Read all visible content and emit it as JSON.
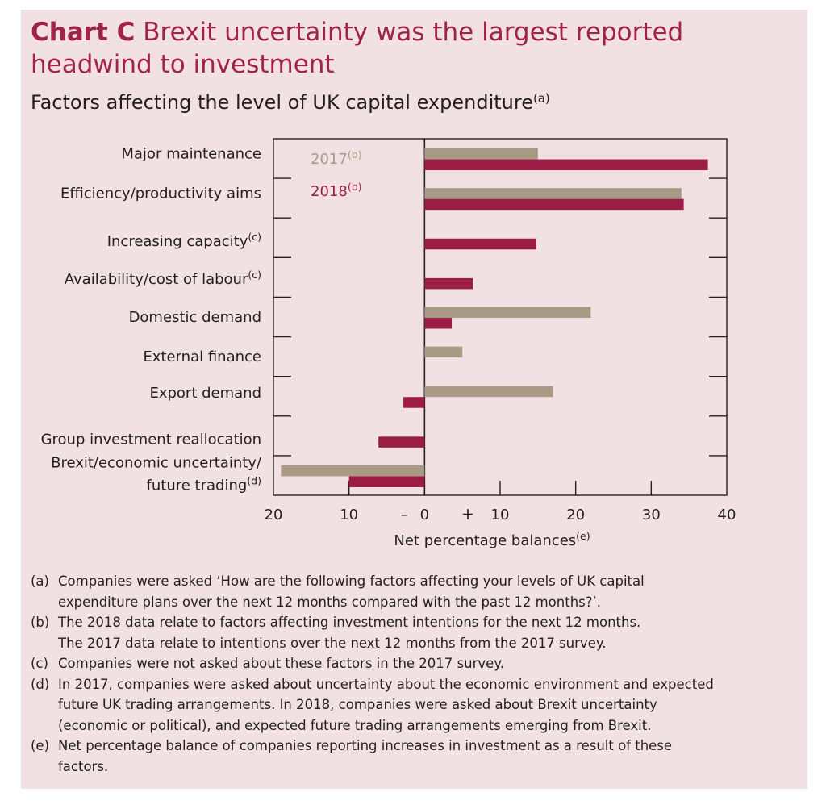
{
  "title": {
    "prefix": "Chart C",
    "text": "Brexit uncertainty was the largest reported headwind to investment"
  },
  "subtitle": {
    "text": "Factors affecting the level of UK capital expenditure",
    "note": "(a)"
  },
  "colors": {
    "s2017": "#a89a85",
    "s2018": "#9b1c44",
    "title": "#a1224a",
    "panel": "#f2e1e3"
  },
  "chart_data": {
    "type": "bar",
    "orientation": "horizontal",
    "categories": [
      {
        "lines": [
          "Major maintenance"
        ],
        "note": ""
      },
      {
        "lines": [
          "Efficiency/productivity aims"
        ],
        "note": ""
      },
      {
        "lines": [
          "Increasing capacity"
        ],
        "note": "(c)"
      },
      {
        "lines": [
          "Availability/cost of labour"
        ],
        "note": "(c)"
      },
      {
        "lines": [
          "Domestic demand"
        ],
        "note": ""
      },
      {
        "lines": [
          "External finance"
        ],
        "note": ""
      },
      {
        "lines": [
          "Export demand"
        ],
        "note": ""
      },
      {
        "lines": [
          "Group investment reallocation"
        ],
        "note": ""
      },
      {
        "lines": [
          "Brexit/economic uncertainty/",
          "future trading"
        ],
        "note": "(d)"
      }
    ],
    "series": [
      {
        "name": "2017",
        "note": "(b)",
        "values": [
          15,
          34,
          null,
          null,
          22,
          5,
          17,
          null,
          -19
        ]
      },
      {
        "name": "2018",
        "note": "(b)",
        "values": [
          37.5,
          34.3,
          14.8,
          6.4,
          3.6,
          null,
          -2.8,
          -6.1,
          -10
        ]
      }
    ],
    "xlim": [
      -20,
      40
    ],
    "xticks": [
      -20,
      -10,
      0,
      10,
      20,
      30,
      40
    ],
    "xtick_labels": [
      "20",
      "10",
      "0",
      "10",
      "20",
      "30",
      "40"
    ],
    "sign_labels": {
      "minus": "–",
      "plus": "+"
    },
    "xlabel": "Net percentage balances",
    "xlabel_note": "(e)",
    "legend_position": "top-left"
  },
  "notes": [
    {
      "marker": "(a)",
      "lines": [
        "Companies were asked ‘How are the following factors affecting your levels of UK capital",
        "expenditure plans over the next 12 months compared with the past 12 months?’."
      ]
    },
    {
      "marker": "(b)",
      "lines": [
        "The 2018 data relate to factors affecting investment intentions for the next 12 months.",
        "The 2017 data relate to intentions over the next 12 months from the 2017 survey."
      ]
    },
    {
      "marker": "(c)",
      "lines": [
        "Companies were not asked about these factors in the 2017 survey."
      ]
    },
    {
      "marker": "(d)",
      "lines": [
        "In 2017, companies were asked about uncertainty about the economic environment and expected",
        "future UK trading arrangements. In 2018, companies were asked about Brexit uncertainty",
        "(economic or political), and expected future trading arrangements emerging from Brexit."
      ]
    },
    {
      "marker": "(e)",
      "lines": [
        "Net percentage balance of companies reporting increases in investment as a result of these",
        "factors."
      ]
    }
  ]
}
